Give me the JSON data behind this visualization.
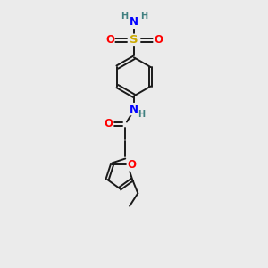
{
  "bg_color": "#ebebeb",
  "bond_color": "#1a1a1a",
  "atom_colors": {
    "O": "#ff0000",
    "N": "#0000ff",
    "S": "#ccaa00",
    "H": "#408080",
    "C": "#1a1a1a"
  },
  "fig_width": 3.0,
  "fig_height": 3.0,
  "dpi": 100
}
